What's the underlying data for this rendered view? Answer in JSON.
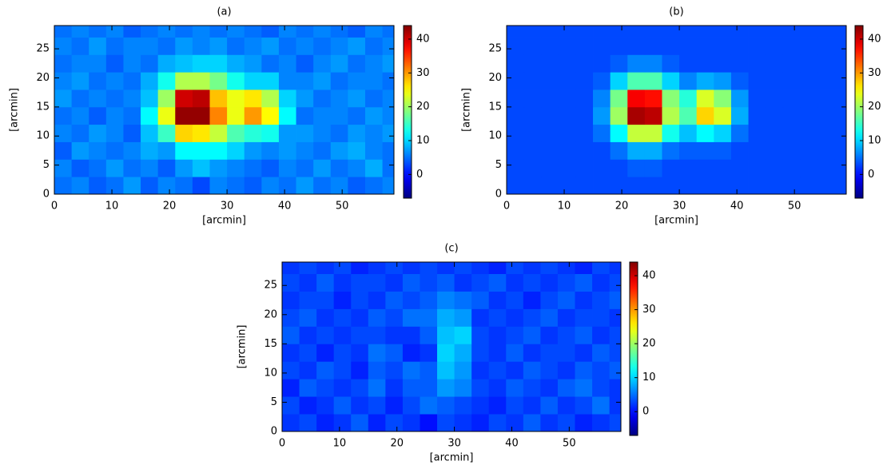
{
  "chart_data": [
    {
      "type": "heatmap",
      "title": "(a)",
      "xlabel": "[arcmin]",
      "ylabel": "[arcmin]",
      "xlim": [
        0,
        59
      ],
      "ylim": [
        0,
        29
      ],
      "xticks": [
        0,
        10,
        20,
        30,
        40,
        50
      ],
      "yticks": [
        0,
        5,
        10,
        15,
        20,
        25
      ],
      "xbins": [
        0,
        3,
        6,
        9,
        12,
        15,
        18,
        21,
        24,
        27,
        30,
        33,
        36,
        39,
        42,
        45,
        48,
        51,
        54,
        57,
        60
      ],
      "ybins": [
        0,
        3,
        6,
        9,
        12,
        15,
        18,
        21,
        24,
        27,
        30
      ],
      "colormap": "jet",
      "zlim": [
        -7,
        44
      ],
      "zticks": [
        0,
        10,
        20,
        30,
        40
      ],
      "z": [
        [
          5,
          6,
          4,
          5,
          7,
          4,
          6,
          5,
          3,
          6,
          5,
          4,
          6,
          5,
          7,
          5,
          6,
          4,
          5,
          6
        ],
        [
          6,
          4,
          5,
          7,
          5,
          6,
          4,
          7,
          9,
          7,
          6,
          5,
          4,
          6,
          5,
          7,
          5,
          6,
          8,
          5
        ],
        [
          4,
          7,
          6,
          5,
          6,
          8,
          7,
          12,
          12,
          12,
          10,
          7,
          6,
          7,
          6,
          5,
          7,
          8,
          6,
          5
        ],
        [
          6,
          5,
          7,
          6,
          4,
          9,
          15,
          27,
          26,
          22,
          16,
          14,
          13,
          7,
          7,
          6,
          5,
          7,
          6,
          7
        ],
        [
          5,
          6,
          4,
          6,
          5,
          12,
          24,
          43,
          43,
          31,
          24,
          30,
          25,
          12,
          5,
          6,
          6,
          5,
          7,
          6
        ],
        [
          7,
          5,
          6,
          5,
          6,
          9,
          20,
          40,
          41,
          28,
          24,
          26,
          21,
          10,
          7,
          5,
          6,
          7,
          5,
          6
        ],
        [
          6,
          7,
          5,
          6,
          5,
          8,
          13,
          21,
          21,
          18,
          13,
          10,
          10,
          6,
          6,
          7,
          5,
          6,
          6,
          5
        ],
        [
          5,
          6,
          6,
          4,
          6,
          5,
          8,
          9,
          10,
          10,
          8,
          7,
          5,
          6,
          4,
          6,
          7,
          5,
          6,
          7
        ],
        [
          6,
          5,
          7,
          5,
          6,
          6,
          5,
          7,
          6,
          7,
          5,
          6,
          7,
          5,
          6,
          5,
          6,
          7,
          5,
          6
        ],
        [
          5,
          6,
          5,
          6,
          4,
          5,
          6,
          5,
          6,
          5,
          6,
          5,
          4,
          6,
          5,
          6,
          5,
          4,
          6,
          5
        ]
      ]
    },
    {
      "type": "heatmap",
      "title": "(b)",
      "xlabel": "[arcmin]",
      "ylabel": "[arcmin]",
      "xlim": [
        0,
        59
      ],
      "ylim": [
        0,
        29
      ],
      "xticks": [
        0,
        10,
        20,
        30,
        40,
        50
      ],
      "yticks": [
        0,
        5,
        10,
        15,
        20,
        25
      ],
      "xbins": [
        0,
        3,
        6,
        9,
        12,
        15,
        18,
        21,
        24,
        27,
        30,
        33,
        36,
        39,
        42,
        45,
        48,
        51,
        54,
        57,
        60
      ],
      "ybins": [
        0,
        3,
        6,
        9,
        12,
        15,
        18,
        21,
        24,
        27,
        30
      ],
      "colormap": "jet",
      "zlim": [
        -7,
        44
      ],
      "zticks": [
        0,
        10,
        20,
        30,
        40
      ],
      "z": [
        [
          3,
          3,
          3,
          3,
          3,
          3,
          3,
          3,
          3,
          3,
          3,
          3,
          3,
          3,
          3,
          3,
          3,
          3,
          3,
          3
        ],
        [
          3,
          3,
          3,
          3,
          3,
          3,
          3,
          4,
          4,
          3,
          3,
          3,
          3,
          3,
          3,
          3,
          3,
          3,
          3,
          3
        ],
        [
          3,
          3,
          3,
          3,
          3,
          3,
          5,
          8,
          8,
          5,
          4,
          4,
          4,
          3,
          3,
          3,
          3,
          3,
          3,
          3
        ],
        [
          3,
          3,
          3,
          3,
          3,
          5,
          12,
          22,
          22,
          13,
          9,
          12,
          10,
          5,
          3,
          3,
          3,
          3,
          3,
          3
        ],
        [
          3,
          3,
          3,
          3,
          3,
          7,
          20,
          42,
          41,
          21,
          16,
          27,
          23,
          8,
          3,
          3,
          3,
          3,
          3,
          3
        ],
        [
          3,
          3,
          3,
          3,
          3,
          6,
          18,
          38,
          37,
          19,
          14,
          23,
          19,
          7,
          3,
          3,
          3,
          3,
          3,
          3
        ],
        [
          3,
          3,
          3,
          3,
          3,
          4,
          10,
          16,
          16,
          10,
          6,
          8,
          7,
          4,
          3,
          3,
          3,
          3,
          3,
          3
        ],
        [
          3,
          3,
          3,
          3,
          3,
          3,
          4,
          6,
          6,
          4,
          3,
          3,
          3,
          3,
          3,
          3,
          3,
          3,
          3,
          3
        ],
        [
          3,
          3,
          3,
          3,
          3,
          3,
          3,
          3,
          3,
          3,
          3,
          3,
          3,
          3,
          3,
          3,
          3,
          3,
          3,
          3
        ],
        [
          3,
          3,
          3,
          3,
          3,
          3,
          3,
          3,
          3,
          3,
          3,
          3,
          3,
          3,
          3,
          3,
          3,
          3,
          3,
          3
        ]
      ]
    },
    {
      "type": "heatmap",
      "title": "(c)",
      "xlabel": "[arcmin]",
      "ylabel": "[arcmin]",
      "xlim": [
        0,
        59
      ],
      "ylim": [
        0,
        29
      ],
      "xticks": [
        0,
        10,
        20,
        30,
        40,
        50
      ],
      "yticks": [
        0,
        5,
        10,
        15,
        20,
        25
      ],
      "xbins": [
        0,
        3,
        6,
        9,
        12,
        15,
        18,
        21,
        24,
        27,
        30,
        33,
        36,
        39,
        42,
        45,
        48,
        51,
        54,
        57,
        60
      ],
      "ybins": [
        0,
        3,
        6,
        9,
        12,
        15,
        18,
        21,
        24,
        27,
        30
      ],
      "colormap": "jet",
      "zlim": [
        -7,
        44
      ],
      "zticks": [
        0,
        10,
        20,
        30,
        40
      ],
      "z": [
        [
          2,
          3,
          1,
          2,
          4,
          1,
          3,
          2,
          0,
          3,
          2,
          1,
          3,
          2,
          4,
          2,
          3,
          1,
          2,
          3
        ],
        [
          3,
          1,
          2,
          4,
          2,
          3,
          1,
          3,
          5,
          4,
          3,
          2,
          1,
          3,
          2,
          4,
          2,
          3,
          5,
          2
        ],
        [
          1,
          4,
          3,
          2,
          3,
          5,
          2,
          4,
          4,
          7,
          6,
          3,
          2,
          4,
          3,
          2,
          4,
          5,
          3,
          2
        ],
        [
          3,
          2,
          4,
          3,
          1,
          4,
          3,
          5,
          4,
          9,
          7,
          2,
          3,
          2,
          4,
          3,
          2,
          4,
          3,
          4
        ],
        [
          2,
          3,
          1,
          3,
          2,
          5,
          4,
          1,
          2,
          10,
          8,
          3,
          2,
          4,
          2,
          3,
          3,
          2,
          4,
          3
        ],
        [
          4,
          2,
          3,
          2,
          3,
          3,
          2,
          2,
          4,
          9,
          10,
          3,
          2,
          3,
          4,
          2,
          3,
          4,
          2,
          3
        ],
        [
          3,
          4,
          2,
          3,
          2,
          4,
          3,
          5,
          5,
          8,
          7,
          2,
          3,
          2,
          3,
          4,
          2,
          3,
          3,
          2
        ],
        [
          2,
          3,
          3,
          1,
          3,
          2,
          4,
          3,
          4,
          6,
          5,
          4,
          2,
          3,
          1,
          3,
          4,
          2,
          3,
          4
        ],
        [
          3,
          2,
          4,
          2,
          3,
          3,
          2,
          4,
          3,
          4,
          2,
          3,
          4,
          2,
          3,
          2,
          3,
          4,
          2,
          3
        ],
        [
          2,
          3,
          2,
          3,
          1,
          2,
          3,
          2,
          3,
          2,
          3,
          2,
          1,
          3,
          2,
          3,
          2,
          1,
          3,
          2
        ]
      ]
    }
  ]
}
